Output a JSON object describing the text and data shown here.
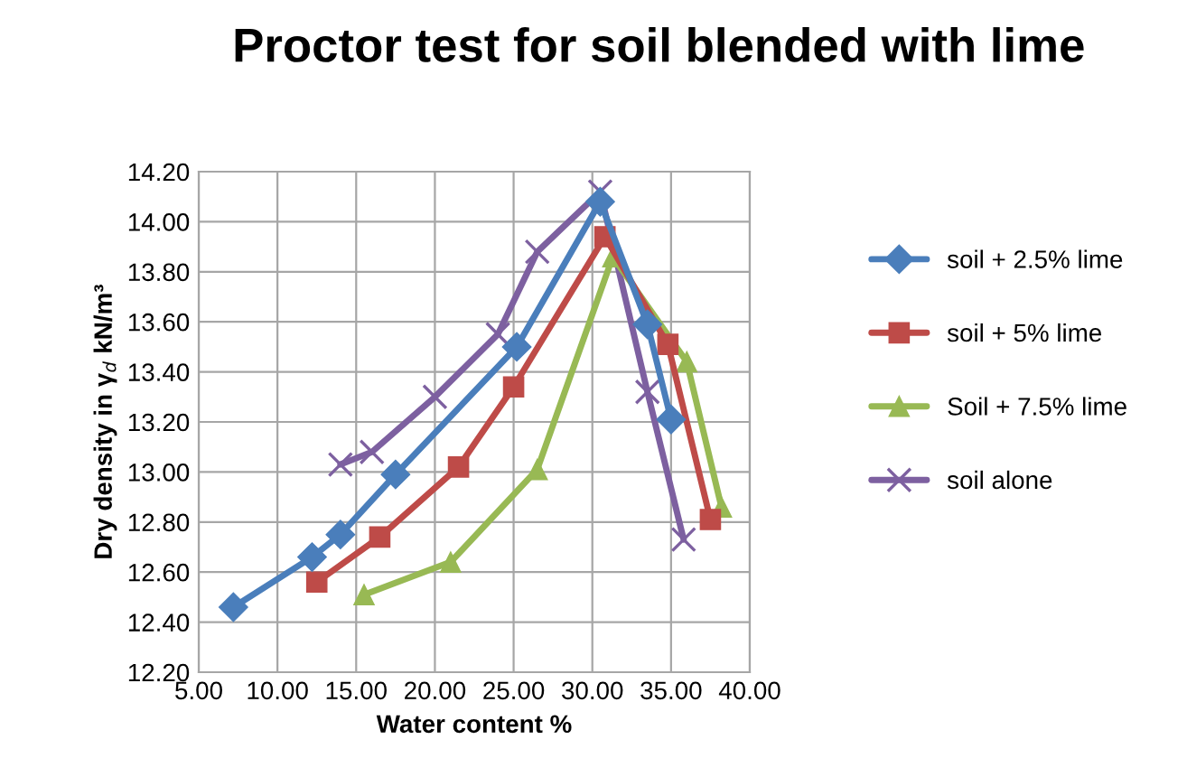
{
  "chart_data": {
    "type": "line",
    "title": "Proctor test for soil blended with lime",
    "xlabel": "Water content %",
    "ylabel": "Dry density in γ$_{d}$ kN/m³",
    "series": [
      {
        "name": "soil + 2.5% lime",
        "color": "#4a7ebb",
        "marker": "diamond",
        "x": [
          7.2,
          12.2,
          14.0,
          17.5,
          25.2,
          30.5,
          33.5,
          35.0
        ],
        "values": [
          12.46,
          12.66,
          12.75,
          12.99,
          13.5,
          14.08,
          13.59,
          13.21
        ]
      },
      {
        "name": "soil + 5% lime",
        "color": "#be4b48",
        "marker": "square",
        "x": [
          12.5,
          16.5,
          21.5,
          25.0,
          30.8,
          34.8,
          37.5
        ],
        "values": [
          12.56,
          12.74,
          13.02,
          13.34,
          13.94,
          13.51,
          12.81
        ]
      },
      {
        "name": "Soil + 7.5% lime",
        "color": "#98b954",
        "marker": "triangle",
        "x": [
          15.5,
          21.0,
          26.5,
          31.3,
          36.0,
          38.2
        ],
        "values": [
          12.51,
          12.64,
          13.01,
          13.86,
          13.44,
          12.86
        ]
      },
      {
        "name": "soil alone",
        "color": "#7d60a0",
        "marker": "cross",
        "x": [
          14.0,
          16.0,
          20.0,
          24.0,
          26.5,
          30.5,
          33.5,
          35.8
        ],
        "values": [
          13.03,
          13.08,
          13.3,
          13.55,
          13.88,
          14.12,
          13.32,
          12.73
        ]
      }
    ],
    "xlim": [
      5,
      40
    ],
    "xticks": [
      {
        "value": 5,
        "label": "5.00"
      },
      {
        "value": 10,
        "label": "10.00"
      },
      {
        "value": 15,
        "label": "15.00"
      },
      {
        "value": 20,
        "label": "20.00"
      },
      {
        "value": 25,
        "label": "25.00"
      },
      {
        "value": 30,
        "label": "30.00"
      },
      {
        "value": 35,
        "label": "35.00"
      },
      {
        "value": 40,
        "label": "40.00"
      }
    ],
    "ylim": [
      12.2,
      14.2
    ],
    "yticks": [
      {
        "value": 12.2,
        "label": "12.20"
      },
      {
        "value": 12.4,
        "label": "12.40"
      },
      {
        "value": 12.6,
        "label": "12.60"
      },
      {
        "value": 12.8,
        "label": "12.80"
      },
      {
        "value": 13.0,
        "label": "13.00"
      },
      {
        "value": 13.2,
        "label": "13.20"
      },
      {
        "value": 13.4,
        "label": "13.40"
      },
      {
        "value": 13.6,
        "label": "13.60"
      },
      {
        "value": 13.8,
        "label": "13.80"
      },
      {
        "value": 14.0,
        "label": "14.00"
      },
      {
        "value": 14.2,
        "label": "14.20"
      }
    ],
    "grid": true,
    "legend": "right",
    "line_style": "solid"
  }
}
